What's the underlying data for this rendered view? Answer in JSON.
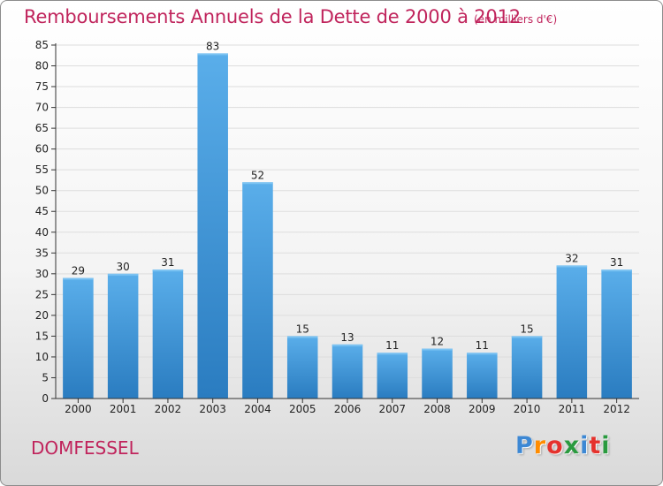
{
  "chart_data": {
    "type": "bar",
    "title": "Remboursements Annuels de la Dette de 2000 à 2012",
    "subtitle": "(en milliers d'€)",
    "xlabel": "",
    "ylabel": "",
    "categories": [
      "2000",
      "2001",
      "2002",
      "2003",
      "2004",
      "2005",
      "2006",
      "2007",
      "2008",
      "2009",
      "2010",
      "2011",
      "2012"
    ],
    "values": [
      29,
      30,
      31,
      83,
      52,
      15,
      13,
      11,
      12,
      11,
      15,
      32,
      31
    ],
    "ylim": [
      0,
      85
    ],
    "yticks": [
      0,
      5,
      10,
      15,
      20,
      25,
      30,
      35,
      40,
      45,
      50,
      55,
      60,
      65,
      70,
      75,
      80,
      85
    ],
    "grid": true,
    "bar_color": "#3f97dc",
    "bar_color_dark": "#2a7cc0"
  },
  "footer": {
    "commune": "DOMFESSEL",
    "logo_letters": [
      "P",
      "r",
      "o",
      "x",
      "i",
      "t",
      "i"
    ],
    "logo_colors": [
      "#3d88d4",
      "#ff8c00",
      "#e5322d",
      "#2a9a3f",
      "#3d88d4",
      "#e5322d",
      "#2a9a3f"
    ]
  },
  "colors": {
    "accent": "#c0245c",
    "axis": "#333333",
    "grid": "#dddddd"
  }
}
